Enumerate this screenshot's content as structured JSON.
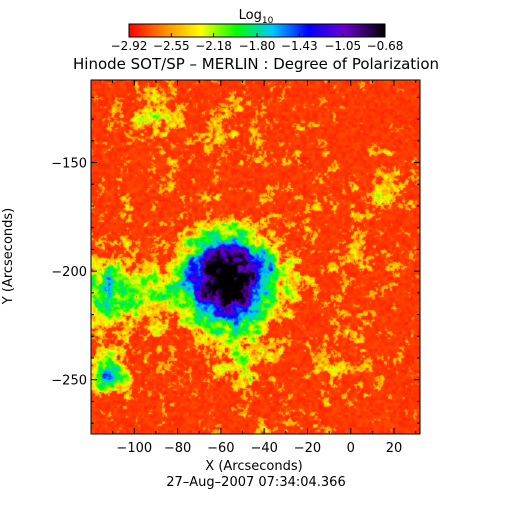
{
  "chart_data": {
    "type": "heatmap",
    "title": "Hinode SOT/SP – MERLIN : Degree of Polarization",
    "subtitle": "27–Aug–2007 07:34:04.366",
    "xlabel": "X (Arcseconds)",
    "ylabel": "Y (Arcseconds)",
    "xlim": [
      -120,
      32
    ],
    "ylim": [
      -275,
      -112
    ],
    "x_ticks": [
      -100,
      -80,
      -60,
      -40,
      -20,
      0,
      20
    ],
    "x_tick_labels": [
      "−100",
      "−80",
      "−60",
      "−40",
      "−20",
      "0",
      "20"
    ],
    "y_ticks": [
      -150,
      -200,
      -250
    ],
    "y_tick_labels": [
      "−150",
      "−200",
      "−250"
    ],
    "colorbar": {
      "label_base": "Log",
      "label_subscript": "10",
      "range": [
        -2.92,
        -0.68
      ],
      "ticks": [
        -2.92,
        -2.55,
        -2.18,
        -1.8,
        -1.43,
        -1.05,
        -0.68
      ],
      "tick_labels": [
        "−2.92",
        "−2.55",
        "−2.18",
        "−1.80",
        "−1.43",
        "−1.05",
        "−0.68"
      ],
      "colors": [
        "#ff0000",
        "#ff8c00",
        "#ffff00",
        "#00ff00",
        "#00c8ff",
        "#0000ff",
        "#6a00d0",
        "#000000"
      ]
    },
    "features": [
      {
        "kind": "sunspot",
        "center": [
          -57,
          -204
        ],
        "peak_log10": -0.68
      }
    ]
  }
}
